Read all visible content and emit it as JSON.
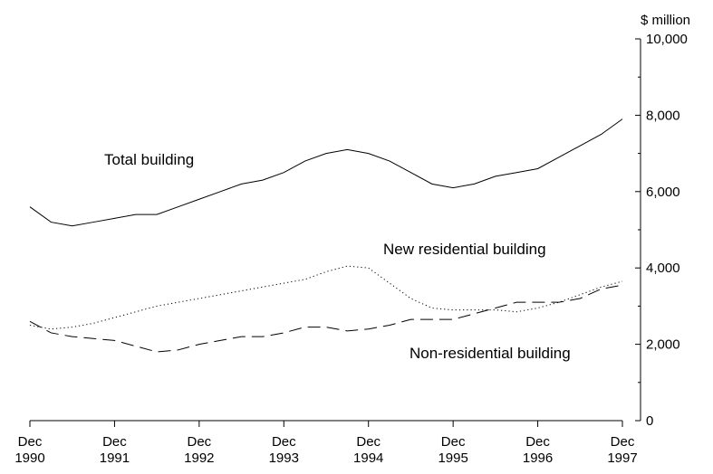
{
  "chart_data": {
    "type": "line",
    "y_axis_label": "$ million",
    "categories": [
      "Dec 1990",
      null,
      null,
      null,
      "Dec 1991",
      null,
      null,
      null,
      "Dec 1992",
      null,
      null,
      null,
      "Dec 1993",
      null,
      null,
      null,
      "Dec 1994",
      null,
      null,
      null,
      "Dec 1995",
      null,
      null,
      null,
      "Dec 1996",
      null,
      null,
      null,
      "Dec 1997"
    ],
    "series": [
      {
        "name": "Total building",
        "color": "#000000",
        "style": "solid",
        "values": [
          5600,
          5200,
          5100,
          5200,
          5300,
          5400,
          5400,
          5600,
          5800,
          6000,
          6200,
          6300,
          6500,
          6800,
          7000,
          7100,
          7000,
          6800,
          6500,
          6200,
          6100,
          6200,
          6400,
          6500,
          6600,
          6900,
          7200,
          7500,
          7900
        ]
      },
      {
        "name": "New residential building",
        "color": "#000000",
        "style": "dotted",
        "values": [
          2500,
          2400,
          2450,
          2550,
          2700,
          2850,
          3000,
          3100,
          3200,
          3300,
          3400,
          3500,
          3600,
          3700,
          3900,
          4050,
          4000,
          3600,
          3200,
          2950,
          2900,
          2900,
          2900,
          2850,
          2950,
          3100,
          3300,
          3500,
          3650
        ]
      },
      {
        "name": "Non-residential building",
        "color": "#000000",
        "style": "dashed",
        "values": [
          2600,
          2300,
          2200,
          2150,
          2100,
          1950,
          1800,
          1850,
          2000,
          2100,
          2200,
          2200,
          2300,
          2450,
          2450,
          2350,
          2400,
          2500,
          2650,
          2650,
          2650,
          2800,
          2950,
          3100,
          3100,
          3100,
          3200,
          3450,
          3550
        ]
      }
    ],
    "ylim": [
      0,
      10000
    ],
    "yticks": [
      0,
      {
        "value": 2000,
        "label": "2,000"
      },
      {
        "value": 4000,
        "label": "4,000"
      },
      {
        "value": 6000,
        "label": "6,000"
      },
      {
        "value": 8000,
        "label": "8,000"
      },
      {
        "value": 10000,
        "label": "10,000"
      }
    ],
    "yticks_minor": [
      1000,
      3000,
      5000,
      7000,
      9000
    ],
    "y_axis_side": "right",
    "grid": false
  }
}
